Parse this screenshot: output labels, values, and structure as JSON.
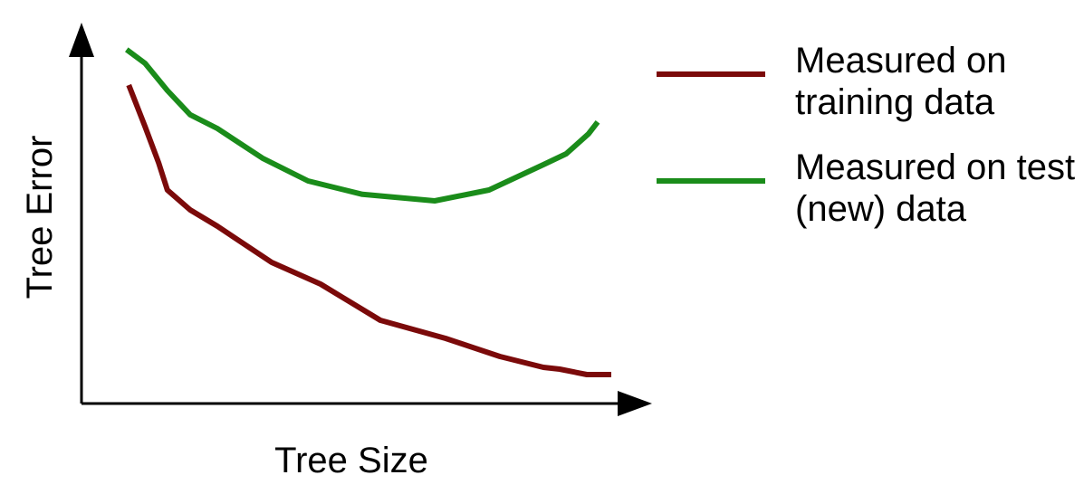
{
  "chart_data": {
    "type": "line",
    "xlabel": "Tree Size",
    "ylabel": "Tree Error",
    "xlim": [
      0,
      100
    ],
    "ylim": [
      0,
      100
    ],
    "series": [
      {
        "name": "Measured on training data",
        "color": "#7b0a0a",
        "x": [
          8.7,
          11.7,
          14.2,
          15.8,
          20,
          25,
          35,
          44,
          55,
          67,
          77,
          85,
          88,
          93,
          97.5
        ],
        "values": [
          88,
          76.5,
          66.5,
          59,
          53.5,
          49,
          39,
          33,
          23,
          18,
          13,
          10,
          9.5,
          8,
          8
        ]
      },
      {
        "name": "Measured on test (new) data",
        "color": "#1a8c1a",
        "x": [
          8.3,
          11.7,
          15.8,
          20,
          25,
          33.3,
          41.7,
          51.7,
          65,
          75,
          85,
          89.2,
          93.3,
          95
        ],
        "values": [
          97.8,
          94,
          86.5,
          79.8,
          76,
          67.8,
          61.5,
          57.8,
          56,
          59,
          66,
          69,
          74.5,
          77.8
        ]
      }
    ]
  }
}
